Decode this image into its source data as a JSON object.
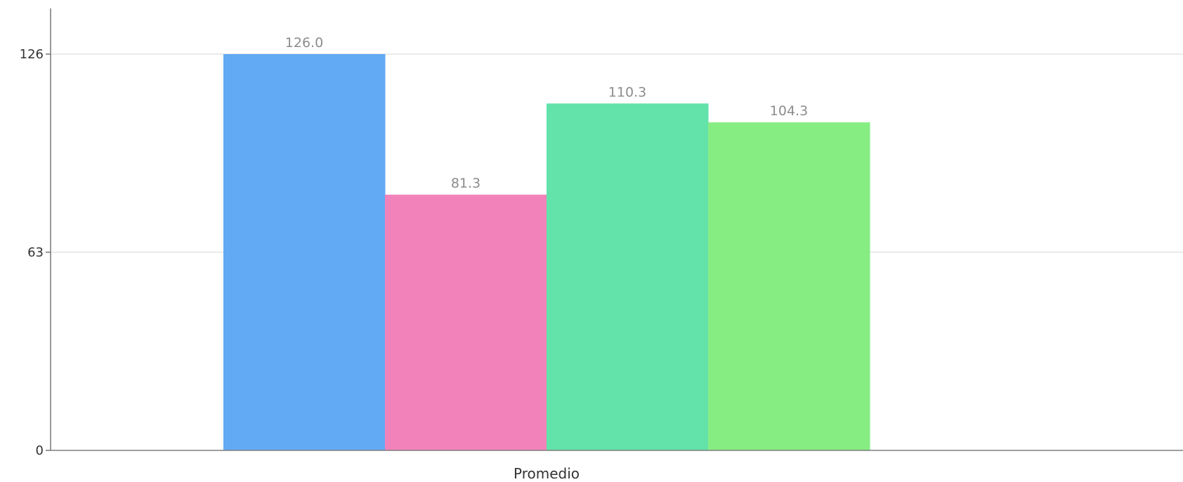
{
  "chart_data": {
    "type": "bar",
    "categories": [
      "Promedio"
    ],
    "series": [
      {
        "values": [
          126.0
        ],
        "color": "#62aaf4",
        "label": "126.0"
      },
      {
        "values": [
          81.3
        ],
        "color": "#f183ba",
        "label": "81.3"
      },
      {
        "values": [
          110.3
        ],
        "color": "#63e2a9",
        "label": "110.3"
      },
      {
        "values": [
          104.3
        ],
        "color": "#86ed83",
        "label": "104.3"
      }
    ],
    "y_ticks": [
      "0",
      "63",
      "126"
    ],
    "y_tick_values": [
      0,
      63,
      126
    ],
    "ylim": [
      0,
      126
    ],
    "grid": true,
    "legend": "none",
    "title": "",
    "xlabel": "",
    "ylabel": ""
  }
}
